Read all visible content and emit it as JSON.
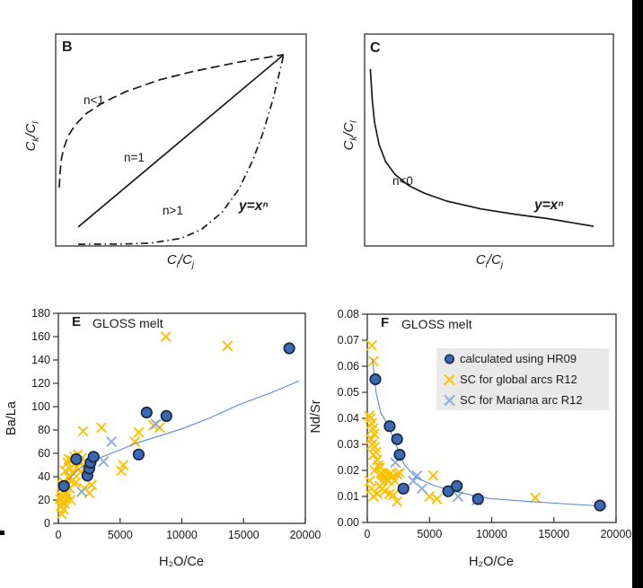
{
  "colors": {
    "background": "#ffffff",
    "axis": "#3f3f3f",
    "text": "#1a1a1a",
    "schematic_line": "#1a1a1a",
    "hr09_fill": "#3a68b2",
    "hr09_stroke": "#17243e",
    "global_arcs": "#ffc000",
    "mariana": "#8faadc",
    "fit_line": "#5b8bd0",
    "legend_bg": "#e9e9e9",
    "edge_bar": "#000000"
  },
  "chart_data": [
    {
      "id": "B",
      "type": "line",
      "panel_label": "B",
      "xlabel_parts": {
        "b1": "C",
        "s1": "i",
        "sep": "/",
        "b2": "C",
        "s2": "j"
      },
      "ylabel_parts": {
        "b1": "C",
        "s1": "k",
        "sep": "/",
        "b2": "C",
        "s2": "l"
      },
      "annotations": [
        {
          "text": "n<1"
        },
        {
          "text": "n=1"
        },
        {
          "text": "n>1"
        },
        {
          "text": "y=xⁿ"
        }
      ],
      "axes": "unlabeled schematic, no ticks",
      "curves": [
        {
          "name": "n<1",
          "style": "dashed",
          "points": [
            [
              0.014,
              0.275
            ],
            [
              0.018,
              0.35
            ],
            [
              0.023,
              0.41
            ],
            [
              0.032,
              0.46
            ],
            [
              0.05,
              0.52
            ],
            [
              0.077,
              0.57
            ],
            [
              0.122,
              0.625
            ],
            [
              0.194,
              0.68
            ],
            [
              0.283,
              0.73
            ],
            [
              0.418,
              0.785
            ],
            [
              0.552,
              0.825
            ],
            [
              0.731,
              0.868
            ],
            [
              0.91,
              0.903
            ]
          ]
        },
        {
          "name": "n=1",
          "style": "solid",
          "points": [
            [
              0.09,
              0.09
            ],
            [
              0.91,
              0.903
            ]
          ]
        },
        {
          "name": "n>1",
          "style": "dashdot",
          "points": [
            [
              0.09,
              0.008
            ],
            [
              0.254,
              0.009
            ],
            [
              0.376,
              0.013
            ],
            [
              0.5,
              0.036
            ],
            [
              0.582,
              0.078
            ],
            [
              0.664,
              0.159
            ],
            [
              0.73,
              0.266
            ],
            [
              0.787,
              0.405
            ],
            [
              0.828,
              0.536
            ],
            [
              0.869,
              0.7
            ],
            [
              0.91,
              0.903
            ]
          ]
        }
      ]
    },
    {
      "id": "C",
      "type": "line",
      "panel_label": "C",
      "xlabel_parts": {
        "b1": "C",
        "s1": "i",
        "sep": "/",
        "b2": "C",
        "s2": "j"
      },
      "ylabel_parts": {
        "b1": "C",
        "s1": "k",
        "sep": "/",
        "b2": "C",
        "s2": "l"
      },
      "annotations": [
        {
          "text": "n<0"
        },
        {
          "text": "y=xⁿ"
        }
      ],
      "axes": "unlabeled schematic, no ticks",
      "curves": [
        {
          "name": "n<0",
          "style": "solid",
          "points": [
            [
              0.023,
              0.835
            ],
            [
              0.031,
              0.686
            ],
            [
              0.04,
              0.583
            ],
            [
              0.058,
              0.479
            ],
            [
              0.085,
              0.397
            ],
            [
              0.122,
              0.338
            ],
            [
              0.176,
              0.286
            ],
            [
              0.24,
              0.249
            ],
            [
              0.33,
              0.212
            ],
            [
              0.467,
              0.175
            ],
            [
              0.603,
              0.15
            ],
            [
              0.739,
              0.129
            ],
            [
              0.921,
              0.093
            ]
          ]
        }
      ]
    },
    {
      "id": "E",
      "type": "scatter",
      "panel_label": "E",
      "title": "GLOSS melt",
      "xlabel": "H₂O/Ce",
      "ylabel": "Ba/La",
      "xlim": [
        0,
        20000
      ],
      "ylim": [
        0,
        180
      ],
      "xticks": {
        "values": [
          0,
          5000,
          10000,
          15000,
          20000
        ],
        "labels": [
          "0",
          "5000",
          "10000",
          "15000",
          "20000"
        ]
      },
      "yticks": {
        "values": [
          0,
          20,
          40,
          60,
          80,
          100,
          120,
          140,
          160,
          180
        ],
        "labels": [
          "0",
          "20",
          "40",
          "60",
          "80",
          "100",
          "120",
          "140",
          "160",
          "180"
        ]
      },
      "series": [
        {
          "name": "SC for global arcs R12",
          "marker": "x",
          "color_key": "global",
          "points": [
            [
              150,
              21
            ],
            [
              200,
              15
            ],
            [
              250,
              24
            ],
            [
              280,
              8
            ],
            [
              300,
              33
            ],
            [
              320,
              18
            ],
            [
              350,
              27
            ],
            [
              400,
              12
            ],
            [
              420,
              22
            ],
            [
              450,
              35
            ],
            [
              500,
              17
            ],
            [
              520,
              28
            ],
            [
              550,
              45
            ],
            [
              600,
              21
            ],
            [
              650,
              33
            ],
            [
              700,
              25
            ],
            [
              750,
              52
            ],
            [
              800,
              40
            ],
            [
              850,
              55
            ],
            [
              900,
              30
            ],
            [
              950,
              47
            ],
            [
              1000,
              20
            ],
            [
              1050,
              36
            ],
            [
              1100,
              54
            ],
            [
              1200,
              43
            ],
            [
              1300,
              57
            ],
            [
              1400,
              35
            ],
            [
              1500,
              48
            ],
            [
              1600,
              59
            ],
            [
              1700,
              52
            ],
            [
              1800,
              44
            ],
            [
              1900,
              56
            ],
            [
              2000,
              79
            ],
            [
              2100,
              30
            ],
            [
              2300,
              48
            ],
            [
              2500,
              26
            ],
            [
              2700,
              33
            ],
            [
              3500,
              82
            ],
            [
              5100,
              45
            ],
            [
              5250,
              50
            ],
            [
              6200,
              70
            ],
            [
              6500,
              78
            ],
            [
              7700,
              84
            ],
            [
              8200,
              82
            ],
            [
              8700,
              160
            ],
            [
              13700,
              152
            ]
          ]
        },
        {
          "name": "SC for Mariana arc R12",
          "marker": "x",
          "color_key": "mariana",
          "points": [
            [
              1900,
              27
            ],
            [
              3650,
              53
            ],
            [
              4300,
              70
            ],
            [
              7900,
              85
            ]
          ]
        },
        {
          "name": "calculated using HR09",
          "marker": "circle",
          "color_key": "hr09",
          "points": [
            [
              450,
              32
            ],
            [
              1450,
              55
            ],
            [
              2350,
              41
            ],
            [
              2500,
              47
            ],
            [
              2600,
              52
            ],
            [
              2850,
              57
            ],
            [
              6500,
              59
            ],
            [
              7150,
              95
            ],
            [
              8750,
              92
            ],
            [
              18700,
              150
            ]
          ]
        }
      ],
      "fit_line": {
        "name": "power-law fit",
        "points": [
          [
            450,
            32
          ],
          [
            850,
            38
          ],
          [
            1600,
            46
          ],
          [
            2550,
            53
          ],
          [
            3800,
            58
          ],
          [
            5000,
            63
          ],
          [
            6400,
            69
          ],
          [
            7900,
            74
          ],
          [
            10000,
            81
          ],
          [
            12200,
            90
          ],
          [
            14700,
            102
          ],
          [
            17000,
            111
          ],
          [
            19500,
            122
          ]
        ]
      }
    },
    {
      "id": "F",
      "type": "scatter",
      "panel_label": "F",
      "title": "GLOSS melt",
      "xlabel": "H₂O/Ce",
      "ylabel": "Nd/Sr",
      "xlim": [
        0,
        20000
      ],
      "ylim": [
        0,
        0.08
      ],
      "xticks": {
        "values": [
          0,
          5000,
          10000,
          15000,
          20000
        ],
        "labels": [
          "0",
          "5000",
          "10000",
          "15000",
          "20000"
        ]
      },
      "yticks": {
        "values": [
          0,
          0.01,
          0.02,
          0.03,
          0.04,
          0.05,
          0.06,
          0.07,
          0.08
        ],
        "labels": [
          "0.00",
          "0.01",
          "0.02",
          "0.03",
          "0.04",
          "0.05",
          "0.06",
          "0.07",
          "0.08"
        ]
      },
      "series": [
        {
          "name": "SC for global arcs R12",
          "marker": "x",
          "color_key": "global",
          "points": [
            [
              360,
              0.068
            ],
            [
              500,
              0.062
            ],
            [
              150,
              0.041
            ],
            [
              250,
              0.04
            ],
            [
              350,
              0.038
            ],
            [
              450,
              0.036
            ],
            [
              550,
              0.034
            ],
            [
              300,
              0.032
            ],
            [
              400,
              0.03
            ],
            [
              600,
              0.029
            ],
            [
              700,
              0.027
            ],
            [
              500,
              0.026
            ],
            [
              800,
              0.024
            ],
            [
              900,
              0.022
            ],
            [
              1000,
              0.021
            ],
            [
              600,
              0.02
            ],
            [
              1100,
              0.019
            ],
            [
              1200,
              0.0185
            ],
            [
              1300,
              0.018
            ],
            [
              1400,
              0.0175
            ],
            [
              1500,
              0.017
            ],
            [
              1600,
              0.0165
            ],
            [
              1700,
              0.016
            ],
            [
              1800,
              0.0185
            ],
            [
              1900,
              0.019
            ],
            [
              2000,
              0.0175
            ],
            [
              2200,
              0.016
            ],
            [
              2400,
              0.0185
            ],
            [
              2600,
              0.019
            ],
            [
              1000,
              0.014
            ],
            [
              1200,
              0.013
            ],
            [
              1400,
              0.012
            ],
            [
              800,
              0.011
            ],
            [
              500,
              0.01
            ],
            [
              1800,
              0.011
            ],
            [
              2100,
              0.0105
            ],
            [
              2400,
              0.008
            ],
            [
              300,
              0.013
            ],
            [
              200,
              0.016
            ],
            [
              5300,
              0.018
            ],
            [
              5000,
              0.01
            ],
            [
              5600,
              0.009
            ],
            [
              13500,
              0.0095
            ]
          ]
        },
        {
          "name": "SC for Mariana arc R12",
          "marker": "x",
          "color_key": "mariana",
          "points": [
            [
              2260,
              0.023
            ],
            [
              3700,
              0.016
            ],
            [
              4000,
              0.018
            ],
            [
              4400,
              0.013
            ],
            [
              7300,
              0.01
            ],
            [
              8800,
              0.0085
            ]
          ]
        },
        {
          "name": "calculated using HR09",
          "marker": "circle",
          "color_key": "hr09",
          "points": [
            [
              650,
              0.055
            ],
            [
              1800,
              0.037
            ],
            [
              2400,
              0.032
            ],
            [
              2600,
              0.026
            ],
            [
              2900,
              0.013
            ],
            [
              6500,
              0.012
            ],
            [
              7200,
              0.014
            ],
            [
              8900,
              0.009
            ],
            [
              18700,
              0.0065
            ]
          ]
        }
      ],
      "fit_line": {
        "name": "power-law fit",
        "points": [
          [
            420,
            0.063
          ],
          [
            700,
            0.05
          ],
          [
            1100,
            0.042
          ],
          [
            1700,
            0.037
          ],
          [
            2300,
            0.03
          ],
          [
            3000,
            0.022
          ],
          [
            4000,
            0.017
          ],
          [
            5500,
            0.014
          ],
          [
            7400,
            0.0115
          ],
          [
            9800,
            0.0092
          ],
          [
            13200,
            0.008
          ],
          [
            16800,
            0.0069
          ],
          [
            19300,
            0.0062
          ]
        ]
      },
      "legend": {
        "items": [
          {
            "label": "calculated using HR09",
            "marker": "circle",
            "color_key": "hr09"
          },
          {
            "label": "SC for global arcs R12",
            "marker": "x",
            "color_key": "global"
          },
          {
            "label": "SC for Mariana arc R12",
            "marker": "x",
            "color_key": "mariana"
          }
        ]
      }
    }
  ]
}
